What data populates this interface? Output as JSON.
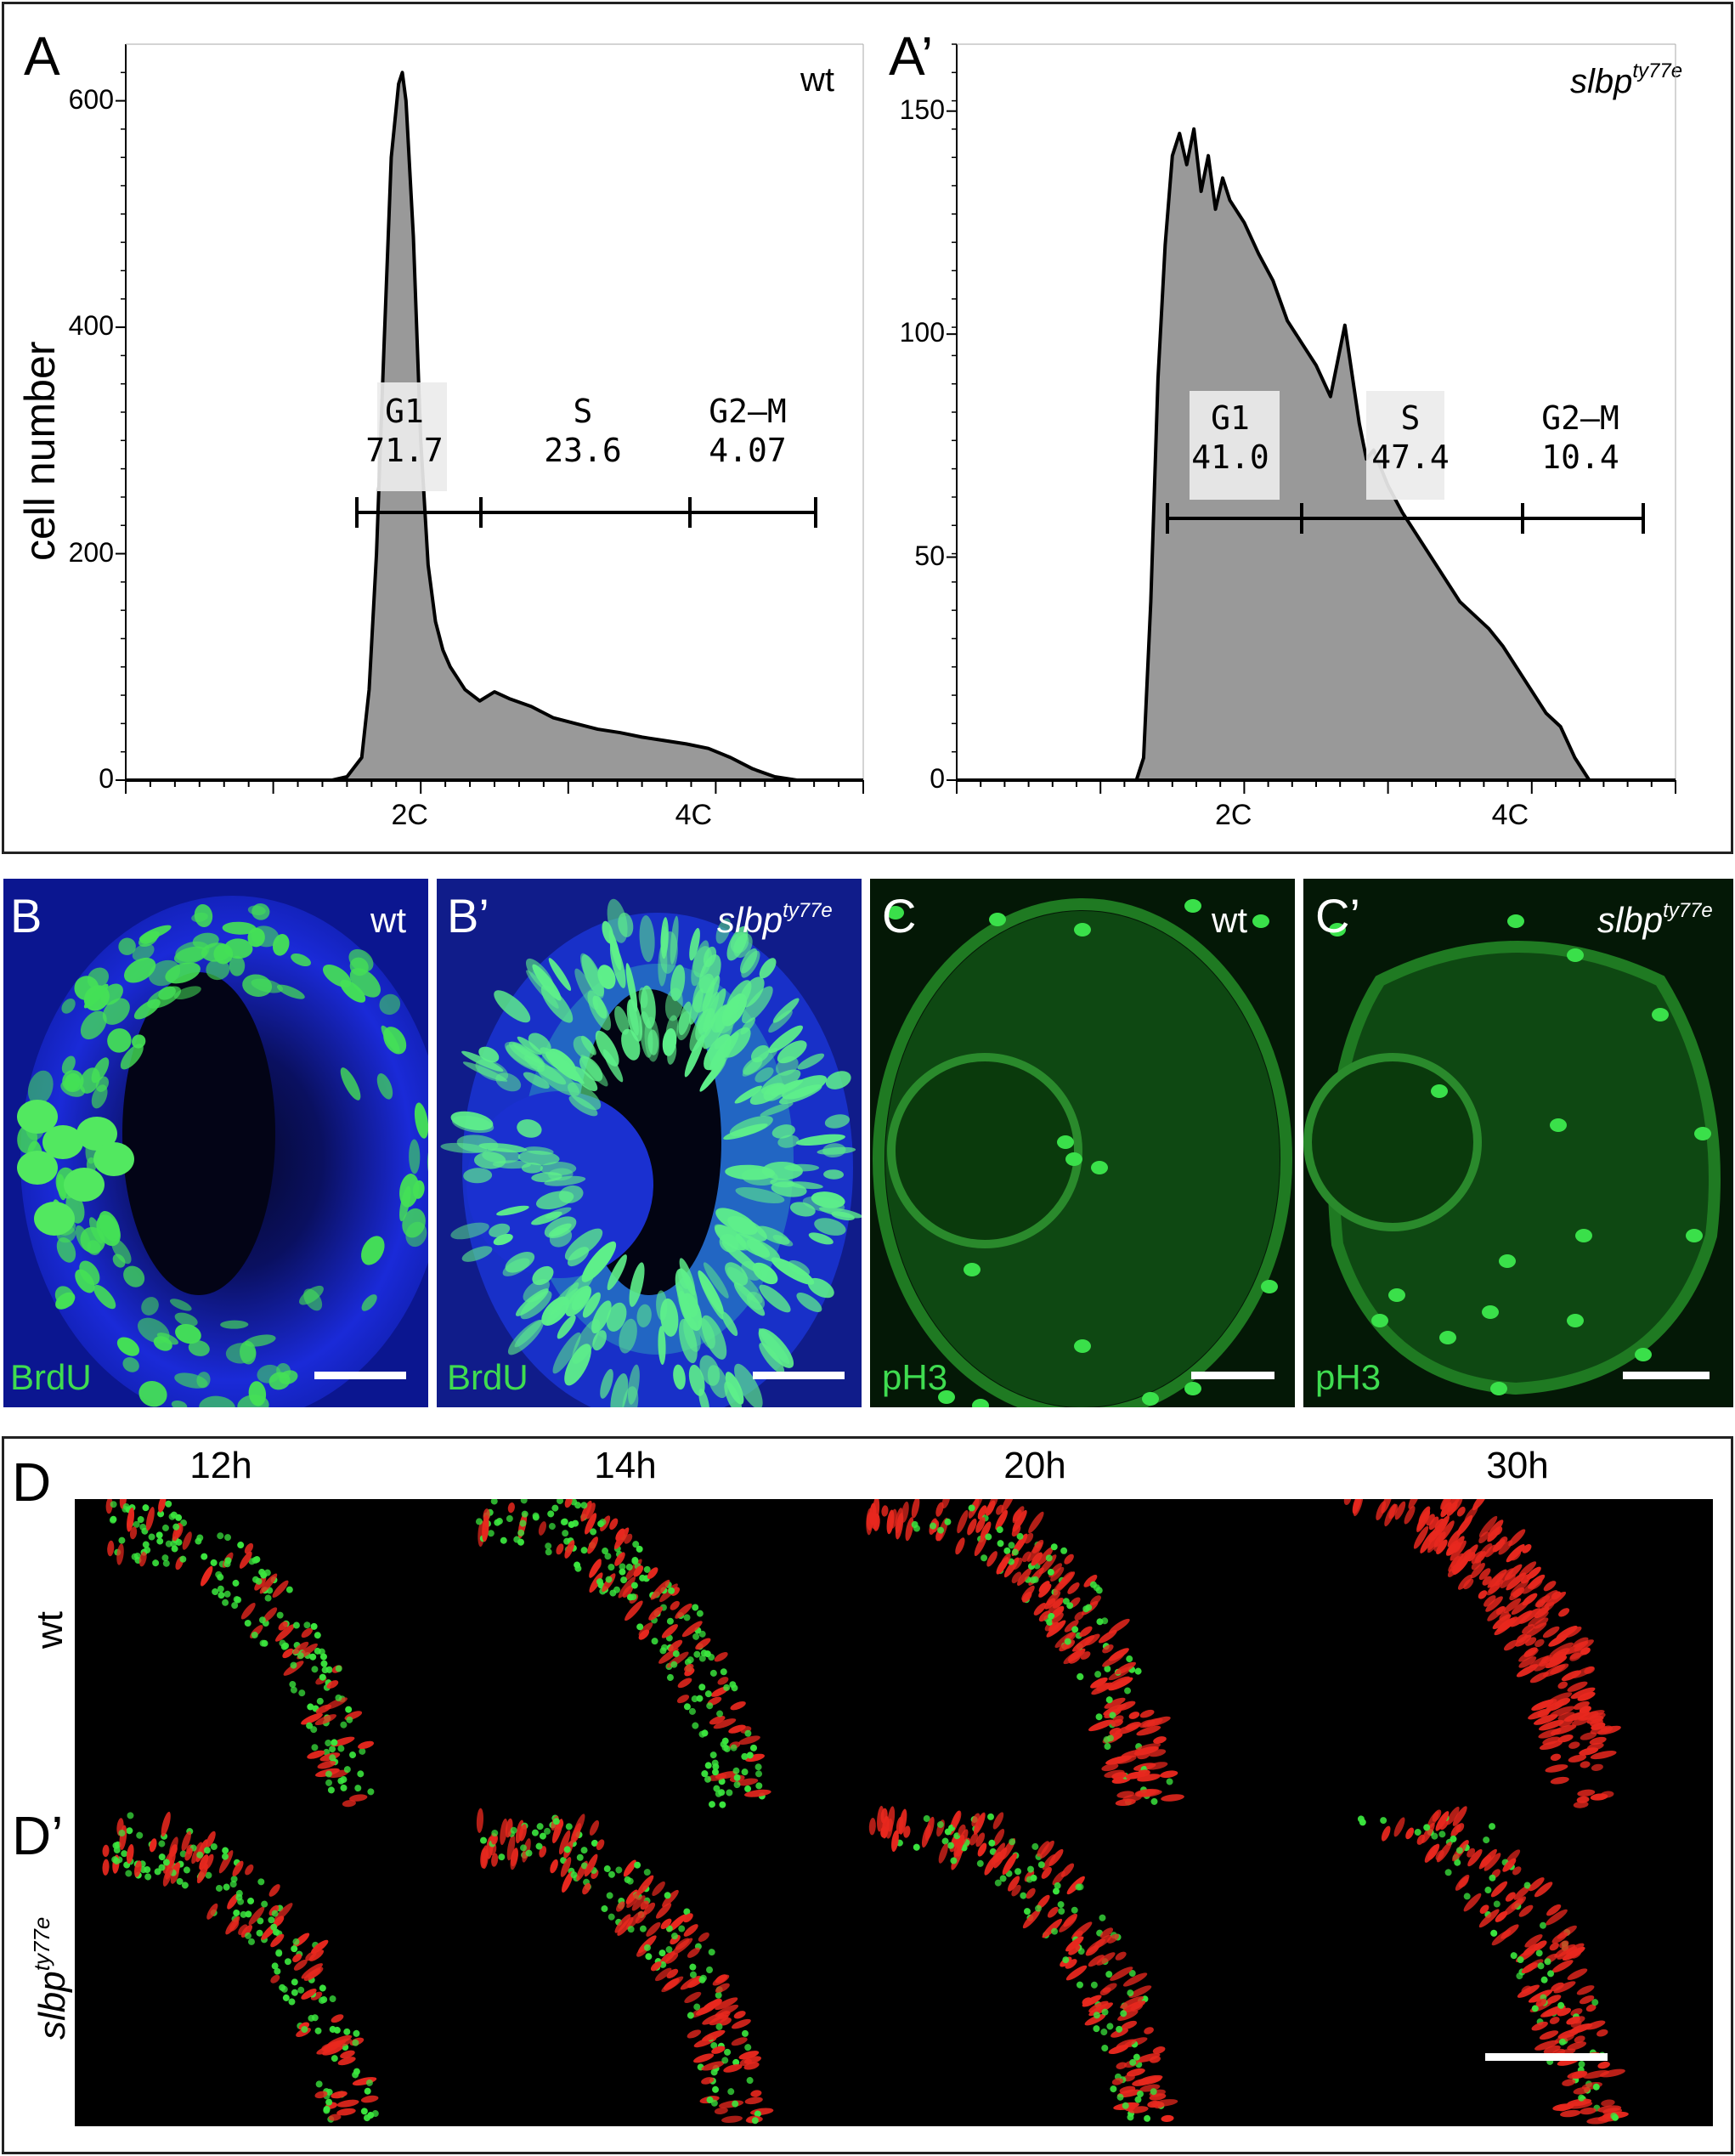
{
  "panels": {
    "a": {
      "label": "A",
      "genotype": "wt"
    },
    "a_prime": {
      "label": "A’",
      "genotype_base": "slbp",
      "genotype_sup": "ty77e"
    },
    "b": {
      "label": "B",
      "genotype": "wt",
      "stain": "BrdU"
    },
    "b_prime": {
      "label": "B’",
      "genotype_base": "slbp",
      "genotype_sup": "ty77e",
      "stain": "BrdU"
    },
    "c": {
      "label": "C",
      "genotype": "wt",
      "stain": "pH3"
    },
    "c_prime": {
      "label": "C’",
      "genotype_base": "slbp",
      "genotype_sup": "ty77e",
      "stain": "pH3"
    },
    "d": {
      "label": "D",
      "row_label": "wt"
    },
    "d_prime": {
      "label": "D’",
      "row_base": "slbp",
      "row_sup": "ty77e"
    },
    "timepoints": [
      "12h",
      "14h",
      "20h",
      "30h"
    ]
  },
  "colors": {
    "hist_fill": "#999999",
    "hist_line": "#000000",
    "brdu": "#3fdc50",
    "dapi": "#1020c8",
    "ph3": "#2fd03a",
    "red": "#e8281e"
  },
  "chart_data": [
    {
      "type": "area",
      "panel": "A",
      "ylabel": "cell number",
      "ylim": [
        0,
        650
      ],
      "yticks": [
        "0",
        "200",
        "400",
        "600"
      ],
      "xticks": [
        "2C",
        "4C"
      ],
      "gates": [
        {
          "name": "G1",
          "value": "71.7"
        },
        {
          "name": "S",
          "value": "23.6"
        },
        {
          "name": "G2–M",
          "value": "4.07"
        }
      ],
      "x": [
        0.28,
        0.3,
        0.32,
        0.33,
        0.34,
        0.35,
        0.36,
        0.37,
        0.375,
        0.38,
        0.39,
        0.4,
        0.41,
        0.42,
        0.43,
        0.44,
        0.45,
        0.46,
        0.48,
        0.5,
        0.52,
        0.55,
        0.58,
        0.61,
        0.64,
        0.67,
        0.7,
        0.73,
        0.76,
        0.79,
        0.82,
        0.85,
        0.88,
        0.91
      ],
      "y": [
        0,
        3,
        20,
        80,
        200,
        380,
        550,
        615,
        625,
        600,
        480,
        300,
        190,
        140,
        115,
        100,
        90,
        80,
        70,
        78,
        72,
        65,
        55,
        50,
        45,
        42,
        38,
        35,
        32,
        28,
        20,
        10,
        3,
        0
      ]
    },
    {
      "type": "area",
      "panel": "A’",
      "ylabel": "",
      "ylim": [
        0,
        165
      ],
      "yticks": [
        "0",
        "50",
        "100",
        "150"
      ],
      "xticks": [
        "2C",
        "4C"
      ],
      "gates": [
        {
          "name": "G1",
          "value": "41.0"
        },
        {
          "name": "S",
          "value": "47.4"
        },
        {
          "name": "G2–M",
          "value": "10.4"
        }
      ],
      "x": [
        0.25,
        0.26,
        0.27,
        0.28,
        0.29,
        0.3,
        0.31,
        0.32,
        0.33,
        0.34,
        0.35,
        0.36,
        0.37,
        0.38,
        0.4,
        0.42,
        0.44,
        0.46,
        0.48,
        0.5,
        0.52,
        0.54,
        0.56,
        0.57,
        0.58,
        0.59,
        0.6,
        0.62,
        0.64,
        0.66,
        0.68,
        0.7,
        0.72,
        0.74,
        0.76,
        0.78,
        0.8,
        0.82,
        0.84,
        0.86,
        0.88,
        0.89,
        0.9,
        0.91
      ],
      "y": [
        0,
        5,
        40,
        90,
        120,
        140,
        145,
        138,
        146,
        132,
        140,
        128,
        135,
        130,
        125,
        118,
        112,
        103,
        98,
        93,
        86,
        102,
        80,
        72,
        74,
        70,
        66,
        60,
        55,
        50,
        45,
        40,
        37,
        34,
        30,
        25,
        20,
        15,
        12,
        5,
        0,
        0,
        0,
        0
      ]
    }
  ]
}
